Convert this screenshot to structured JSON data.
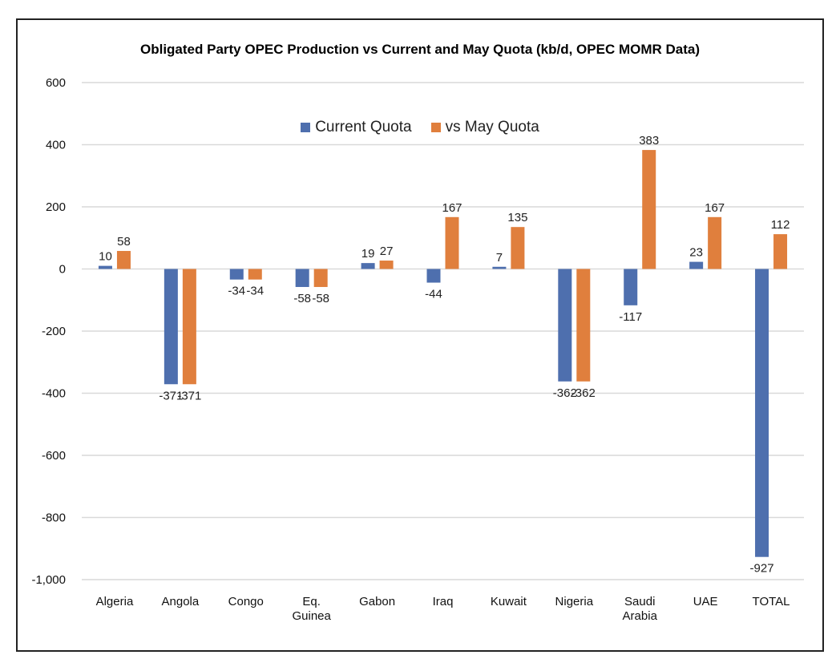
{
  "chart_data": {
    "type": "bar",
    "title": "Obligated Party OPEC Production vs Current and May Quota (kb/d, OPEC MOMR Data)",
    "xlabel": "",
    "ylabel": "",
    "ylim": [
      -1000,
      600
    ],
    "yticks": [
      600,
      400,
      200,
      0,
      -200,
      -400,
      -600,
      -800,
      -1000
    ],
    "ytick_labels": [
      "600",
      "400",
      "200",
      "0",
      "-200",
      "-400",
      "-600",
      "-800",
      "-1,000"
    ],
    "grid": true,
    "legend_position": "top-center",
    "categories": [
      "Algeria",
      "Angola",
      "Congo",
      "Eq. Guinea",
      "Gabon",
      "Iraq",
      "Kuwait",
      "Nigeria",
      "Saudi Arabia",
      "UAE",
      "TOTAL"
    ],
    "category_lines": [
      [
        "Algeria"
      ],
      [
        "Angola"
      ],
      [
        "Congo"
      ],
      [
        "Eq.",
        "Guinea"
      ],
      [
        "Gabon"
      ],
      [
        "Iraq"
      ],
      [
        "Kuwait"
      ],
      [
        "Nigeria"
      ],
      [
        "Saudi",
        "Arabia"
      ],
      [
        "UAE"
      ],
      [
        "TOTAL"
      ]
    ],
    "series": [
      {
        "name": "Current Quota",
        "color": "#4e6fae",
        "values": [
          10,
          -371,
          -34,
          -58,
          19,
          -44,
          7,
          -362,
          -117,
          23,
          -927
        ]
      },
      {
        "name": "vs May Quota",
        "color": "#e07f3d",
        "values": [
          58,
          -371,
          -34,
          -58,
          27,
          167,
          135,
          -362,
          383,
          167,
          112
        ]
      }
    ]
  }
}
